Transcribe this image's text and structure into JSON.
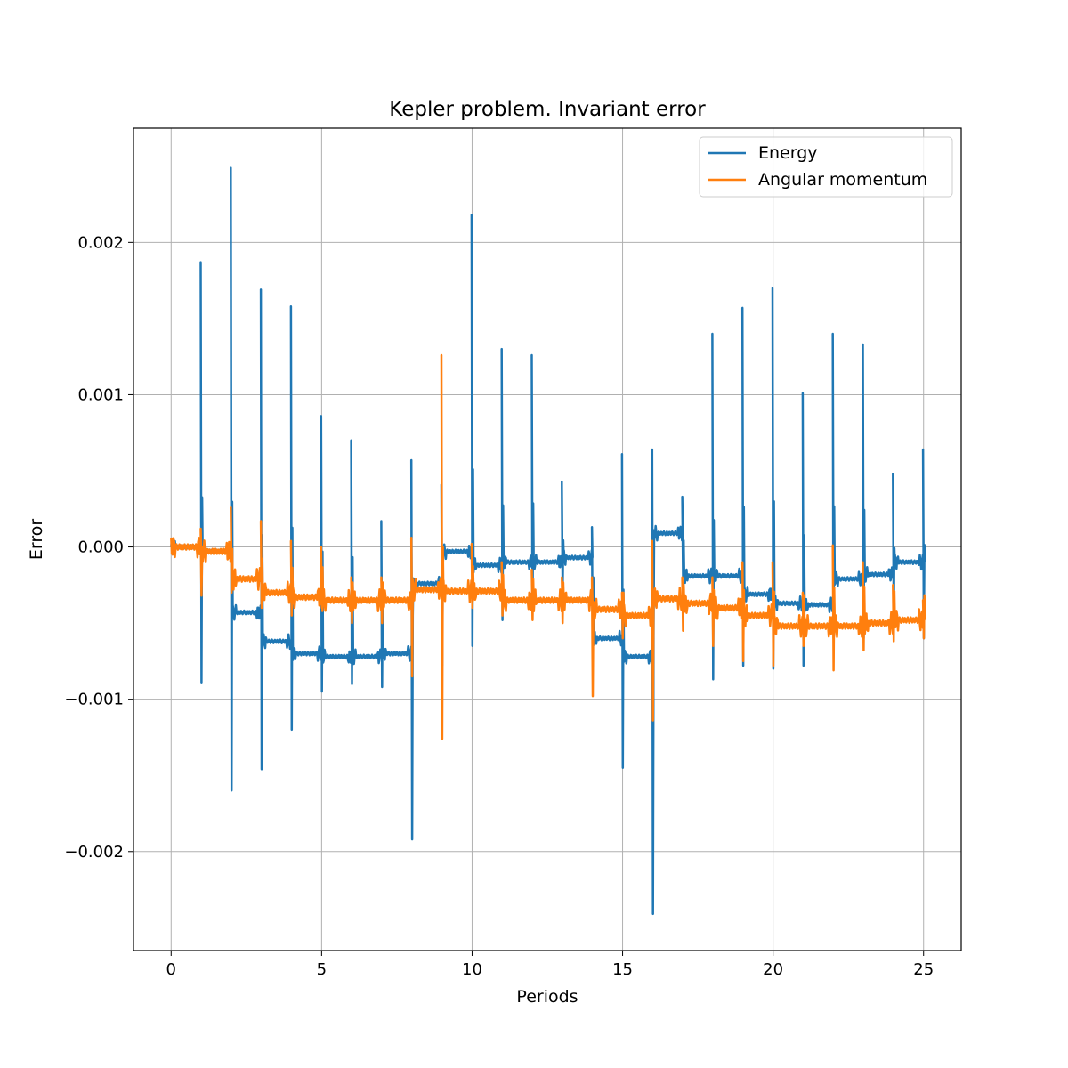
{
  "chart_data": {
    "type": "line",
    "title": "Kepler problem. Invariant error",
    "xlabel": "Periods",
    "ylabel": "Error",
    "xlim": [
      -1.25,
      26.25
    ],
    "ylim": [
      -0.00265,
      0.00275
    ],
    "xticks": [
      0,
      5,
      10,
      15,
      20,
      25
    ],
    "yticks": [
      -0.002,
      -0.001,
      0.0,
      0.001,
      0.002
    ],
    "ytick_labels": [
      "−0.002",
      "−0.001",
      "0.000",
      "0.001",
      "0.002"
    ],
    "grid": true,
    "legend_position": "top-right",
    "colors": {
      "energy": "#1f77b4",
      "angular_momentum": "#ff7f0e"
    },
    "series": [
      {
        "name": "Energy",
        "baseline_levels": [
          [
            0,
            1,
            0.0
          ],
          [
            1,
            2,
            -3e-05
          ],
          [
            2,
            3,
            -0.00043
          ],
          [
            3,
            4,
            -0.00062
          ],
          [
            4,
            5,
            -0.0007
          ],
          [
            5,
            7,
            -0.00072
          ],
          [
            7,
            8,
            -0.0007
          ],
          [
            8,
            9,
            -0.00024
          ],
          [
            9,
            10,
            -3e-05
          ],
          [
            10,
            11,
            -0.00012
          ],
          [
            11,
            13,
            -0.0001
          ],
          [
            13,
            14,
            -7e-05
          ],
          [
            14,
            15,
            -0.0006
          ],
          [
            15,
            16,
            -0.00072
          ],
          [
            16,
            17,
            9e-05
          ],
          [
            17,
            19,
            -0.00019
          ],
          [
            19,
            20,
            -0.00031
          ],
          [
            20,
            21,
            -0.00037
          ],
          [
            21,
            22,
            -0.00038
          ],
          [
            22,
            23,
            -0.00021
          ],
          [
            23,
            24,
            -0.00018
          ],
          [
            24,
            25,
            -0.0001
          ]
        ],
        "peaks": [
          [
            1,
            0.00187,
            -0.00089
          ],
          [
            2,
            0.00249,
            -0.0016
          ],
          [
            3,
            0.00169,
            -0.00146
          ],
          [
            4,
            0.00158,
            -0.0012
          ],
          [
            5,
            0.00086,
            -0.00095
          ],
          [
            6,
            0.0007,
            -0.0009
          ],
          [
            7,
            0.00017,
            -0.00092
          ],
          [
            8,
            0.00057,
            -0.00192
          ],
          [
            9,
            0.00041,
            -0.00078
          ],
          [
            10,
            0.00218,
            -0.00065
          ],
          [
            11,
            0.0013,
            -0.00048
          ],
          [
            12,
            0.00126,
            -0.0004
          ],
          [
            13,
            0.00043,
            -0.0003
          ],
          [
            14,
            0.00013,
            -0.00073
          ],
          [
            15,
            0.00061,
            -0.00145
          ],
          [
            16,
            0.00064,
            -0.00241
          ],
          [
            17,
            0.00033,
            -0.0002
          ],
          [
            18,
            0.0014,
            -0.00087
          ],
          [
            19,
            0.00157,
            -0.00078
          ],
          [
            20,
            0.0017,
            -0.0008
          ],
          [
            21,
            0.00101,
            -0.00078
          ],
          [
            22,
            0.0014,
            -0.0006
          ],
          [
            23,
            0.00133,
            -0.0006
          ],
          [
            24,
            0.00048,
            -0.0005
          ],
          [
            25,
            0.00064,
            -0.0006
          ]
        ]
      },
      {
        "name": "Angular momentum",
        "baseline_levels": [
          [
            0,
            1,
            0.0
          ],
          [
            1,
            2,
            -3e-05
          ],
          [
            2,
            3,
            -0.00021
          ],
          [
            3,
            4,
            -0.0003
          ],
          [
            4,
            5,
            -0.00033
          ],
          [
            5,
            8,
            -0.00035
          ],
          [
            8,
            9,
            -0.00028
          ],
          [
            9,
            11,
            -0.00029
          ],
          [
            11,
            14,
            -0.00035
          ],
          [
            14,
            15,
            -0.00041
          ],
          [
            15,
            16,
            -0.00045
          ],
          [
            16,
            17,
            -0.00034
          ],
          [
            17,
            18,
            -0.00037
          ],
          [
            18,
            19,
            -0.0004
          ],
          [
            19,
            20,
            -0.00045
          ],
          [
            20,
            22,
            -0.00052
          ],
          [
            22,
            23,
            -0.00052
          ],
          [
            23,
            24,
            -0.0005
          ],
          [
            24,
            25,
            -0.00048
          ]
        ],
        "peaks": [
          [
            1,
            0.00012,
            -0.00032
          ],
          [
            2,
            0.00026,
            -0.0003
          ],
          [
            3,
            0.00017,
            -0.0004
          ],
          [
            4,
            4e-05,
            -0.00045
          ],
          [
            5,
            0.0,
            -0.0004
          ],
          [
            6,
            -0.0002,
            -0.0005
          ],
          [
            7,
            -0.0002,
            -0.0005
          ],
          [
            8,
            6e-05,
            -0.00085
          ],
          [
            9,
            0.00126,
            -0.00126
          ],
          [
            10,
            2e-05,
            -0.0004
          ],
          [
            11,
            -0.0001,
            -0.00045
          ],
          [
            12,
            -0.00015,
            -0.00048
          ],
          [
            13,
            -0.0002,
            -0.0005
          ],
          [
            14,
            -0.0002,
            -0.00098
          ],
          [
            15,
            -0.0003,
            -0.0006
          ],
          [
            16,
            4e-05,
            -0.00114
          ],
          [
            17,
            -0.0002,
            -0.00055
          ],
          [
            18,
            -0.0002,
            -0.00065
          ],
          [
            19,
            -0.0001,
            -0.00075
          ],
          [
            20,
            -0.0001,
            -0.00078
          ],
          [
            21,
            -0.0003,
            -0.00065
          ],
          [
            22,
            1e-05,
            -0.00081
          ],
          [
            23,
            -0.0001,
            -0.00068
          ],
          [
            24,
            -0.00025,
            -0.00062
          ],
          [
            25,
            -0.00035,
            -0.0006
          ]
        ]
      }
    ]
  }
}
